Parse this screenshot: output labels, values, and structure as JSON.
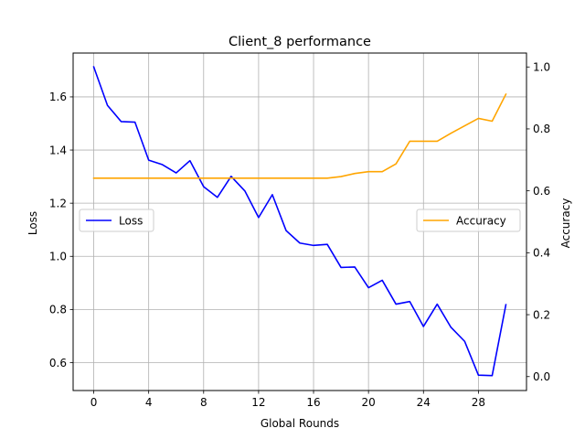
{
  "chart_data": {
    "type": "line",
    "title": "Client_8 performance",
    "xlabel": "Global Rounds",
    "ylabel_left": "Loss",
    "ylabel_right": "Accuracy",
    "x": [
      0,
      1,
      2,
      3,
      4,
      5,
      6,
      7,
      8,
      9,
      10,
      11,
      12,
      13,
      14,
      15,
      16,
      17,
      18,
      19,
      20,
      21,
      22,
      23,
      24,
      25,
      26,
      27,
      28,
      29,
      30
    ],
    "xlim": [
      -1.5,
      31.5
    ],
    "xticks": [
      0,
      4,
      8,
      12,
      16,
      20,
      24,
      28
    ],
    "ylim_left": [
      0.495,
      1.765
    ],
    "yticks_left": [
      0.6,
      0.8,
      1.0,
      1.2,
      1.4,
      1.6
    ],
    "ylim_right": [
      -0.045,
      1.045
    ],
    "yticks_right": [
      0.0,
      0.2,
      0.4,
      0.6,
      0.8,
      1.0
    ],
    "grid": true,
    "series": [
      {
        "name": "Loss",
        "axis": "left",
        "color": "#0000ff",
        "values": [
          1.713,
          1.568,
          1.507,
          1.505,
          1.362,
          1.345,
          1.314,
          1.36,
          1.262,
          1.222,
          1.301,
          1.246,
          1.146,
          1.232,
          1.097,
          1.05,
          1.041,
          1.045,
          0.958,
          0.96,
          0.882,
          0.91,
          0.82,
          0.83,
          0.736,
          0.82,
          0.733,
          0.68,
          0.553,
          0.551,
          0.818
        ]
      },
      {
        "name": "Accuracy",
        "axis": "right",
        "color": "#ffa500",
        "values": [
          0.641,
          0.641,
          0.641,
          0.641,
          0.641,
          0.641,
          0.641,
          0.641,
          0.641,
          0.641,
          0.641,
          0.641,
          0.641,
          0.641,
          0.641,
          0.641,
          0.641,
          0.641,
          0.646,
          0.656,
          0.662,
          0.662,
          0.687,
          0.76,
          0.76,
          0.76,
          0.786,
          0.81,
          0.834,
          0.825,
          0.912
        ]
      }
    ],
    "legends": [
      {
        "series": "Loss",
        "placement": "center-left"
      },
      {
        "series": "Accuracy",
        "placement": "center-right"
      }
    ]
  }
}
